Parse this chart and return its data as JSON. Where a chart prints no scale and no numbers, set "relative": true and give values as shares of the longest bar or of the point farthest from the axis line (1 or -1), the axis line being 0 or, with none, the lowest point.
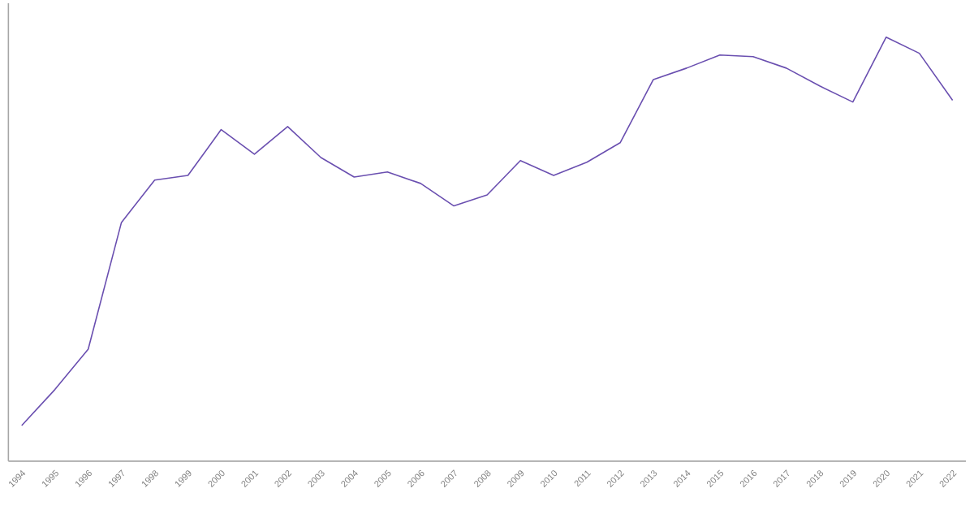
{
  "chart_data": {
    "type": "line",
    "relative": true,
    "categories": [
      "1994",
      "1995",
      "1996",
      "1997",
      "1998",
      "1999",
      "2000",
      "2001",
      "2002",
      "2003",
      "2004",
      "2005",
      "2006",
      "2007",
      "2008",
      "2009",
      "2010",
      "2011",
      "2012",
      "2013",
      "2014",
      "2015",
      "2016",
      "2017",
      "2018",
      "2019",
      "2020",
      "2021",
      "2022"
    ],
    "series": [
      {
        "color": "#6a4fb0",
        "values": [
          0.084,
          0.169,
          0.264,
          0.563,
          0.663,
          0.674,
          0.782,
          0.724,
          0.789,
          0.716,
          0.67,
          0.682,
          0.655,
          0.602,
          0.628,
          0.709,
          0.674,
          0.705,
          0.751,
          0.9,
          0.927,
          0.958,
          0.954,
          0.927,
          0.885,
          0.847,
          1,
          0.962,
          0.851
        ]
      }
    ]
  }
}
